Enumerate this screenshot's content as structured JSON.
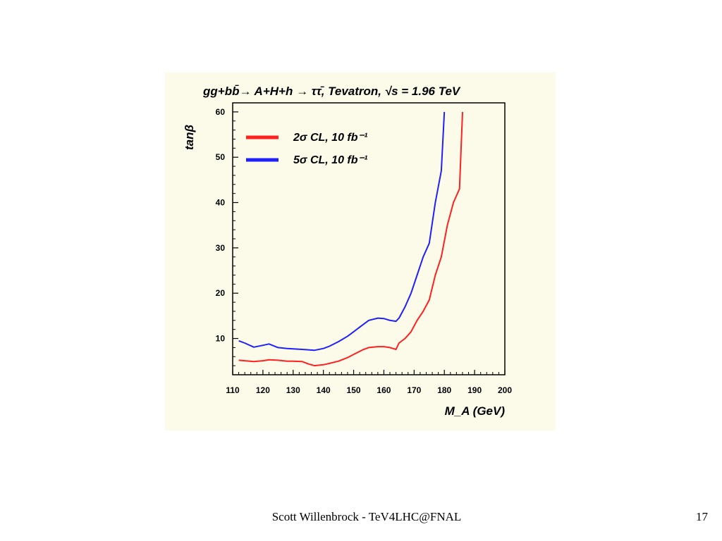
{
  "footer": {
    "text": "Scott Willenbrock - TeV4LHC@FNAL",
    "page_number": "17"
  },
  "colors": {
    "panel_background": "#fcfbea",
    "series_2sigma": "#ff2020",
    "series_5sigma": "#2020ff"
  },
  "chart_data": {
    "type": "line",
    "title": "gg+bb̄→ A+H+h → ττ̄, Tevatron, √s = 1.96 TeV",
    "xlabel": "M_A (GeV)",
    "ylabel": "tanβ",
    "xlim": [
      110,
      200
    ],
    "ylim": [
      2,
      62
    ],
    "x_ticks": [
      110,
      120,
      130,
      140,
      150,
      160,
      170,
      180,
      190,
      200
    ],
    "y_ticks": [
      10,
      20,
      30,
      40,
      50,
      60
    ],
    "grid": false,
    "legend_position": "top-left",
    "series": [
      {
        "name": "2σ CL, 10 fb⁻¹",
        "color": "#ff2020",
        "x": [
          112,
          114,
          117,
          120,
          122,
          125,
          128,
          130,
          133,
          135,
          137,
          140,
          142,
          145,
          148,
          150,
          153,
          155,
          158,
          160,
          162,
          164,
          165,
          167,
          169,
          171,
          173,
          175,
          177,
          179,
          181,
          183,
          185,
          186
        ],
        "y": [
          5.2,
          5.1,
          4.9,
          5.1,
          5.3,
          5.2,
          5.0,
          5.0,
          4.9,
          4.4,
          4.0,
          4.2,
          4.5,
          5.0,
          5.8,
          6.5,
          7.5,
          8.0,
          8.2,
          8.2,
          8.0,
          7.6,
          9.0,
          10.0,
          11.5,
          14.0,
          16.0,
          18.5,
          24.0,
          28.0,
          35.0,
          40.0,
          43.0,
          60.0
        ]
      },
      {
        "name": "5σ CL, 10 fb⁻¹",
        "color": "#2020ff",
        "x": [
          112,
          114,
          117,
          120,
          122,
          125,
          128,
          130,
          133,
          135,
          137,
          140,
          142,
          145,
          148,
          150,
          152,
          155,
          158,
          160,
          162,
          164,
          165,
          167,
          169,
          171,
          173,
          175,
          177,
          179,
          180
        ],
        "y": [
          9.5,
          9.0,
          8.1,
          8.5,
          8.8,
          8.0,
          7.8,
          7.7,
          7.6,
          7.5,
          7.4,
          7.8,
          8.3,
          9.3,
          10.5,
          11.5,
          12.5,
          14.0,
          14.5,
          14.4,
          14.0,
          13.8,
          14.5,
          17.0,
          20.0,
          24.0,
          28.0,
          31.0,
          40.0,
          47.0,
          60.0
        ]
      }
    ]
  }
}
